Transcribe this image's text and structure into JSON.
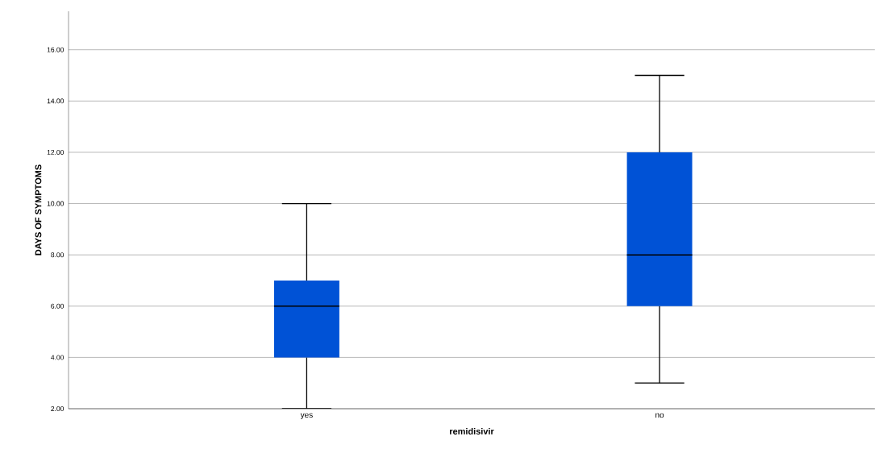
{
  "chart_data": {
    "type": "box",
    "xlabel": "remidisivir",
    "ylabel": "DAYS OF SYMPTOMS",
    "categories": [
      "yes",
      "no"
    ],
    "boxes": [
      {
        "low": 2,
        "q1": 4,
        "median": 6,
        "q3": 7,
        "high": 10
      },
      {
        "low": 3,
        "q1": 6,
        "median": 8,
        "q3": 12,
        "high": 15
      }
    ],
    "color": "#0052d6",
    "ylim": [
      2,
      17.5
    ],
    "yticks": [
      {
        "value": 2,
        "label": "2.00"
      },
      {
        "value": 4,
        "label": "4.00"
      },
      {
        "value": 6,
        "label": "6.00"
      },
      {
        "value": 8,
        "label": "8.00"
      },
      {
        "value": 10,
        "label": "10.00"
      },
      {
        "value": 12,
        "label": "12.00"
      },
      {
        "value": 14,
        "label": "14.00"
      },
      {
        "value": 16,
        "label": "16.00"
      }
    ],
    "grid": "y"
  }
}
